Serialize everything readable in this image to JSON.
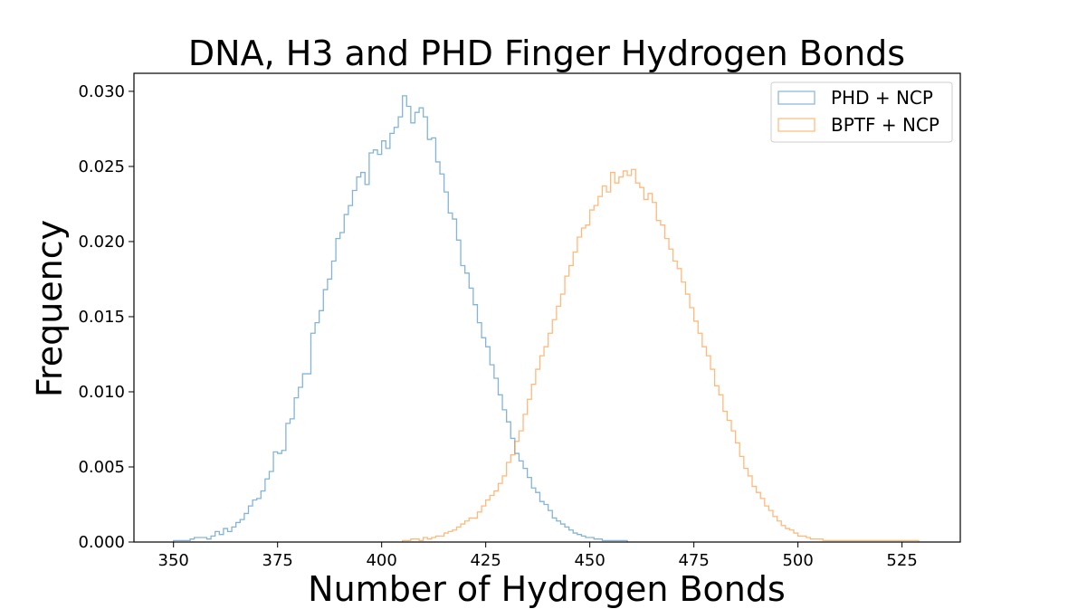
{
  "chart_data": {
    "type": "histogram",
    "title": "DNA, H3 and PHD Finger Hydrogen Bonds",
    "xlabel": "Number of Hydrogen Bonds",
    "ylabel": "Frequency",
    "xlim": [
      340.5,
      539
    ],
    "ylim": [
      0,
      0.0312
    ],
    "xticks": [
      350,
      375,
      400,
      425,
      450,
      475,
      500,
      525
    ],
    "xtick_labels": [
      "350",
      "375",
      "400",
      "425",
      "450",
      "475",
      "500",
      "525"
    ],
    "yticks": [
      0.0,
      0.005,
      0.01,
      0.015,
      0.02,
      0.025,
      0.03
    ],
    "ytick_labels": [
      "0.000",
      "0.005",
      "0.010",
      "0.015",
      "0.020",
      "0.025",
      "0.030"
    ],
    "bin_width": 1,
    "legend": {
      "placement": "upper right",
      "entries": [
        "PHD + NCP",
        "BPTF + NCP"
      ]
    },
    "series": [
      {
        "name": "PHD + NCP",
        "color": "#1f77b4",
        "bin_start": 350,
        "values": [
          0.0001,
          0.0001,
          0.0001,
          0.0001,
          0.0002,
          0.0003,
          0.0003,
          0.0003,
          0.0002,
          0.0004,
          0.0007,
          0.0005,
          0.0009,
          0.0007,
          0.001,
          0.0013,
          0.0015,
          0.0019,
          0.0024,
          0.0028,
          0.0029,
          0.0034,
          0.0042,
          0.0047,
          0.006,
          0.0059,
          0.0061,
          0.0079,
          0.0082,
          0.0096,
          0.0103,
          0.0112,
          0.0112,
          0.0139,
          0.0146,
          0.0154,
          0.0168,
          0.0175,
          0.0187,
          0.0202,
          0.0206,
          0.0218,
          0.0224,
          0.0234,
          0.0243,
          0.0246,
          0.0238,
          0.0259,
          0.0261,
          0.0258,
          0.0267,
          0.0262,
          0.0272,
          0.0276,
          0.0283,
          0.0297,
          0.029,
          0.0279,
          0.0286,
          0.0289,
          0.0283,
          0.0268,
          0.0269,
          0.0253,
          0.0245,
          0.0233,
          0.0219,
          0.0215,
          0.0201,
          0.0184,
          0.0179,
          0.0169,
          0.0158,
          0.0146,
          0.0136,
          0.013,
          0.0118,
          0.0109,
          0.0098,
          0.0088,
          0.008,
          0.0069,
          0.0059,
          0.0054,
          0.0049,
          0.0043,
          0.0036,
          0.0033,
          0.0027,
          0.0025,
          0.0021,
          0.0016,
          0.0014,
          0.0012,
          0.001,
          0.0008,
          0.0006,
          0.0005,
          0.0004,
          0.0003,
          0.0003,
          0.0002,
          0.0002,
          0.0001,
          0.0001,
          0.0001,
          0.0001,
          0.0001,
          0.0001
        ]
      },
      {
        "name": "BPTF + NCP",
        "color": "#ff7f0e",
        "bin_start": 405,
        "values": [
          0.0001,
          0.0001,
          0.0002,
          0.0002,
          0.0001,
          0.0003,
          0.0002,
          0.0003,
          0.0004,
          0.0004,
          0.0006,
          0.0007,
          0.0008,
          0.001,
          0.0012,
          0.0014,
          0.0016,
          0.0016,
          0.002,
          0.0024,
          0.0028,
          0.0031,
          0.0034,
          0.0039,
          0.0044,
          0.0053,
          0.0058,
          0.0067,
          0.0074,
          0.0085,
          0.0095,
          0.0105,
          0.0115,
          0.0124,
          0.013,
          0.0139,
          0.0148,
          0.0157,
          0.0165,
          0.0177,
          0.0184,
          0.0193,
          0.0203,
          0.0209,
          0.0211,
          0.0221,
          0.0224,
          0.023,
          0.0237,
          0.0233,
          0.0246,
          0.0239,
          0.0243,
          0.0247,
          0.0244,
          0.0248,
          0.0239,
          0.0236,
          0.0228,
          0.0232,
          0.0226,
          0.0214,
          0.0211,
          0.0202,
          0.0195,
          0.0187,
          0.0182,
          0.0173,
          0.0165,
          0.0156,
          0.0147,
          0.0139,
          0.013,
          0.0124,
          0.0115,
          0.0104,
          0.0098,
          0.0087,
          0.0081,
          0.0074,
          0.0066,
          0.0057,
          0.0049,
          0.0044,
          0.0037,
          0.0033,
          0.0029,
          0.0024,
          0.0021,
          0.0017,
          0.0014,
          0.0011,
          0.0009,
          0.0008,
          0.0006,
          0.0004,
          0.0004,
          0.0003,
          0.0002,
          0.0002,
          0.0002,
          0.0001,
          0.0001,
          0.0001,
          0.0001,
          0.0001,
          0.0001,
          0.0001,
          0.0001,
          0.0001,
          0.0001,
          0.0001,
          0.0001,
          0.0001,
          0.0001,
          0.0001,
          0.0001,
          0.0001,
          0.0001,
          0.0001,
          0.0001,
          0.0001,
          0.0001,
          0.0001
        ]
      }
    ]
  }
}
